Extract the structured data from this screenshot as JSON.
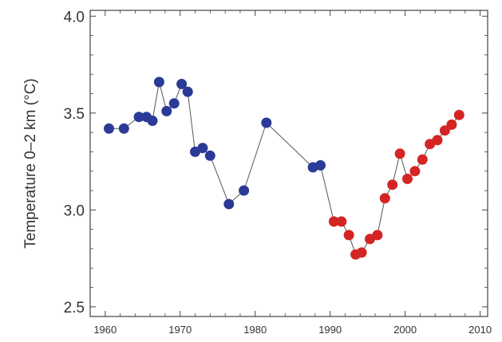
{
  "chart_data": {
    "type": "scatter",
    "ylabel": "Temperature 0–2 km (°C)",
    "xlim": [
      1958,
      2011
    ],
    "ylim": [
      2.45,
      4.03
    ],
    "x_ticks": [
      1960,
      1970,
      1980,
      1990,
      2000,
      2010
    ],
    "y_ticks": [
      2.5,
      3.0,
      3.5,
      4.0
    ],
    "x_tick_labels": [
      "1960",
      "1970",
      "1980",
      "1990",
      "2000",
      "2010"
    ],
    "y_tick_labels": [
      "2.5",
      "3.0",
      "3.5",
      "4.0"
    ],
    "grid": false,
    "line_color": "#555555",
    "series": [
      {
        "color": "#2a3a96",
        "points": [
          [
            1960.5,
            3.42
          ],
          [
            1962.5,
            3.42
          ],
          [
            1964.5,
            3.48
          ],
          [
            1965.5,
            3.48
          ],
          [
            1966.3,
            3.46
          ],
          [
            1967.2,
            3.66
          ],
          [
            1968.2,
            3.51
          ],
          [
            1969.2,
            3.55
          ],
          [
            1970.2,
            3.65
          ],
          [
            1971.0,
            3.61
          ],
          [
            1972.0,
            3.3
          ],
          [
            1973.0,
            3.32
          ],
          [
            1974.0,
            3.28
          ],
          [
            1976.5,
            3.03
          ],
          [
            1978.5,
            3.1
          ],
          [
            1981.5,
            3.45
          ],
          [
            1987.7,
            3.22
          ],
          [
            1988.7,
            3.23
          ]
        ]
      },
      {
        "color": "#d42424",
        "points": [
          [
            1990.5,
            2.94
          ],
          [
            1991.5,
            2.94
          ],
          [
            1992.5,
            2.87
          ],
          [
            1993.4,
            2.77
          ],
          [
            1994.2,
            2.78
          ],
          [
            1995.3,
            2.85
          ],
          [
            1996.3,
            2.87
          ],
          [
            1997.3,
            3.06
          ],
          [
            1998.3,
            3.13
          ],
          [
            1999.3,
            3.29
          ],
          [
            2000.3,
            3.16
          ],
          [
            2001.3,
            3.2
          ],
          [
            2002.3,
            3.26
          ],
          [
            2003.3,
            3.34
          ],
          [
            2004.3,
            3.36
          ],
          [
            2005.3,
            3.41
          ],
          [
            2006.2,
            3.44
          ],
          [
            2007.2,
            3.49
          ]
        ]
      }
    ]
  }
}
